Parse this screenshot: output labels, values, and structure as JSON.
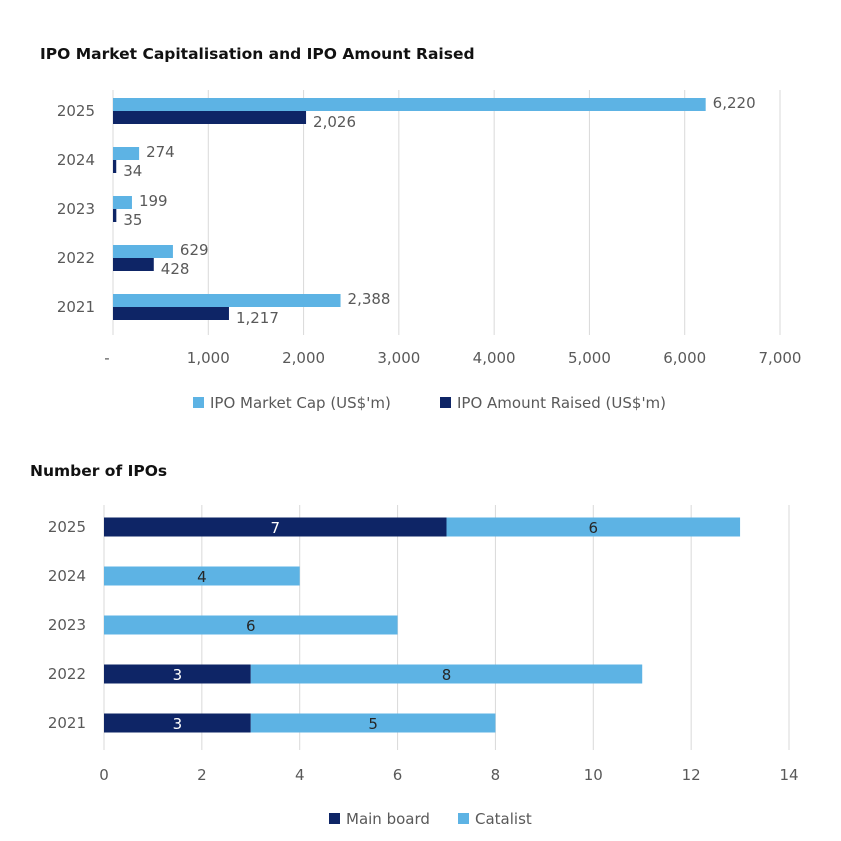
{
  "colors": {
    "light": "#5DB3E4",
    "dark": "#0E2566",
    "grid": "#D9D9D9",
    "text": "#595959"
  },
  "chart_data": [
    {
      "type": "bar",
      "orientation": "horizontal",
      "title": "IPO Market Capitalisation and IPO Amount Raised",
      "categories": [
        "2025",
        "2024",
        "2023",
        "2022",
        "2021"
      ],
      "series": [
        {
          "name": "IPO Market Cap (US$'m)",
          "color": "#5DB3E4",
          "values": [
            6220,
            274,
            199,
            629,
            2388
          ],
          "labels": [
            "6,220",
            "274",
            "199",
            "629",
            "2,388"
          ]
        },
        {
          "name": "IPO Amount Raised (US$'m)",
          "color": "#0E2566",
          "values": [
            2026,
            34,
            35,
            428,
            1217
          ],
          "labels": [
            "2,026",
            "34",
            "35",
            "428",
            "1,217"
          ]
        }
      ],
      "xlim": [
        0,
        7000
      ],
      "xticks": [
        0,
        1000,
        2000,
        3000,
        4000,
        5000,
        6000,
        7000
      ],
      "xtick_labels": [
        "-",
        "1,000",
        "2,000",
        "3,000",
        "4,000",
        "5,000",
        "6,000",
        "7,000"
      ],
      "grid": true,
      "legend": "bottom"
    },
    {
      "type": "bar",
      "orientation": "horizontal",
      "stacked": true,
      "title": "Number of IPOs",
      "categories": [
        "2025",
        "2024",
        "2023",
        "2022",
        "2021"
      ],
      "series": [
        {
          "name": "Main board",
          "color": "#0E2566",
          "values": [
            7,
            0,
            0,
            3,
            3
          ],
          "labels": [
            "7",
            "",
            "",
            "3",
            "3"
          ]
        },
        {
          "name": "Catalist",
          "color": "#5DB3E4",
          "values": [
            6,
            4,
            6,
            8,
            5
          ],
          "labels": [
            "6",
            "4",
            "6",
            "8",
            "5"
          ]
        }
      ],
      "xlim": [
        0,
        14
      ],
      "xticks": [
        0,
        2,
        4,
        6,
        8,
        10,
        12,
        14
      ],
      "xtick_labels": [
        "0",
        "2",
        "4",
        "6",
        "8",
        "10",
        "12",
        "14"
      ],
      "grid": true,
      "legend": "bottom"
    }
  ]
}
